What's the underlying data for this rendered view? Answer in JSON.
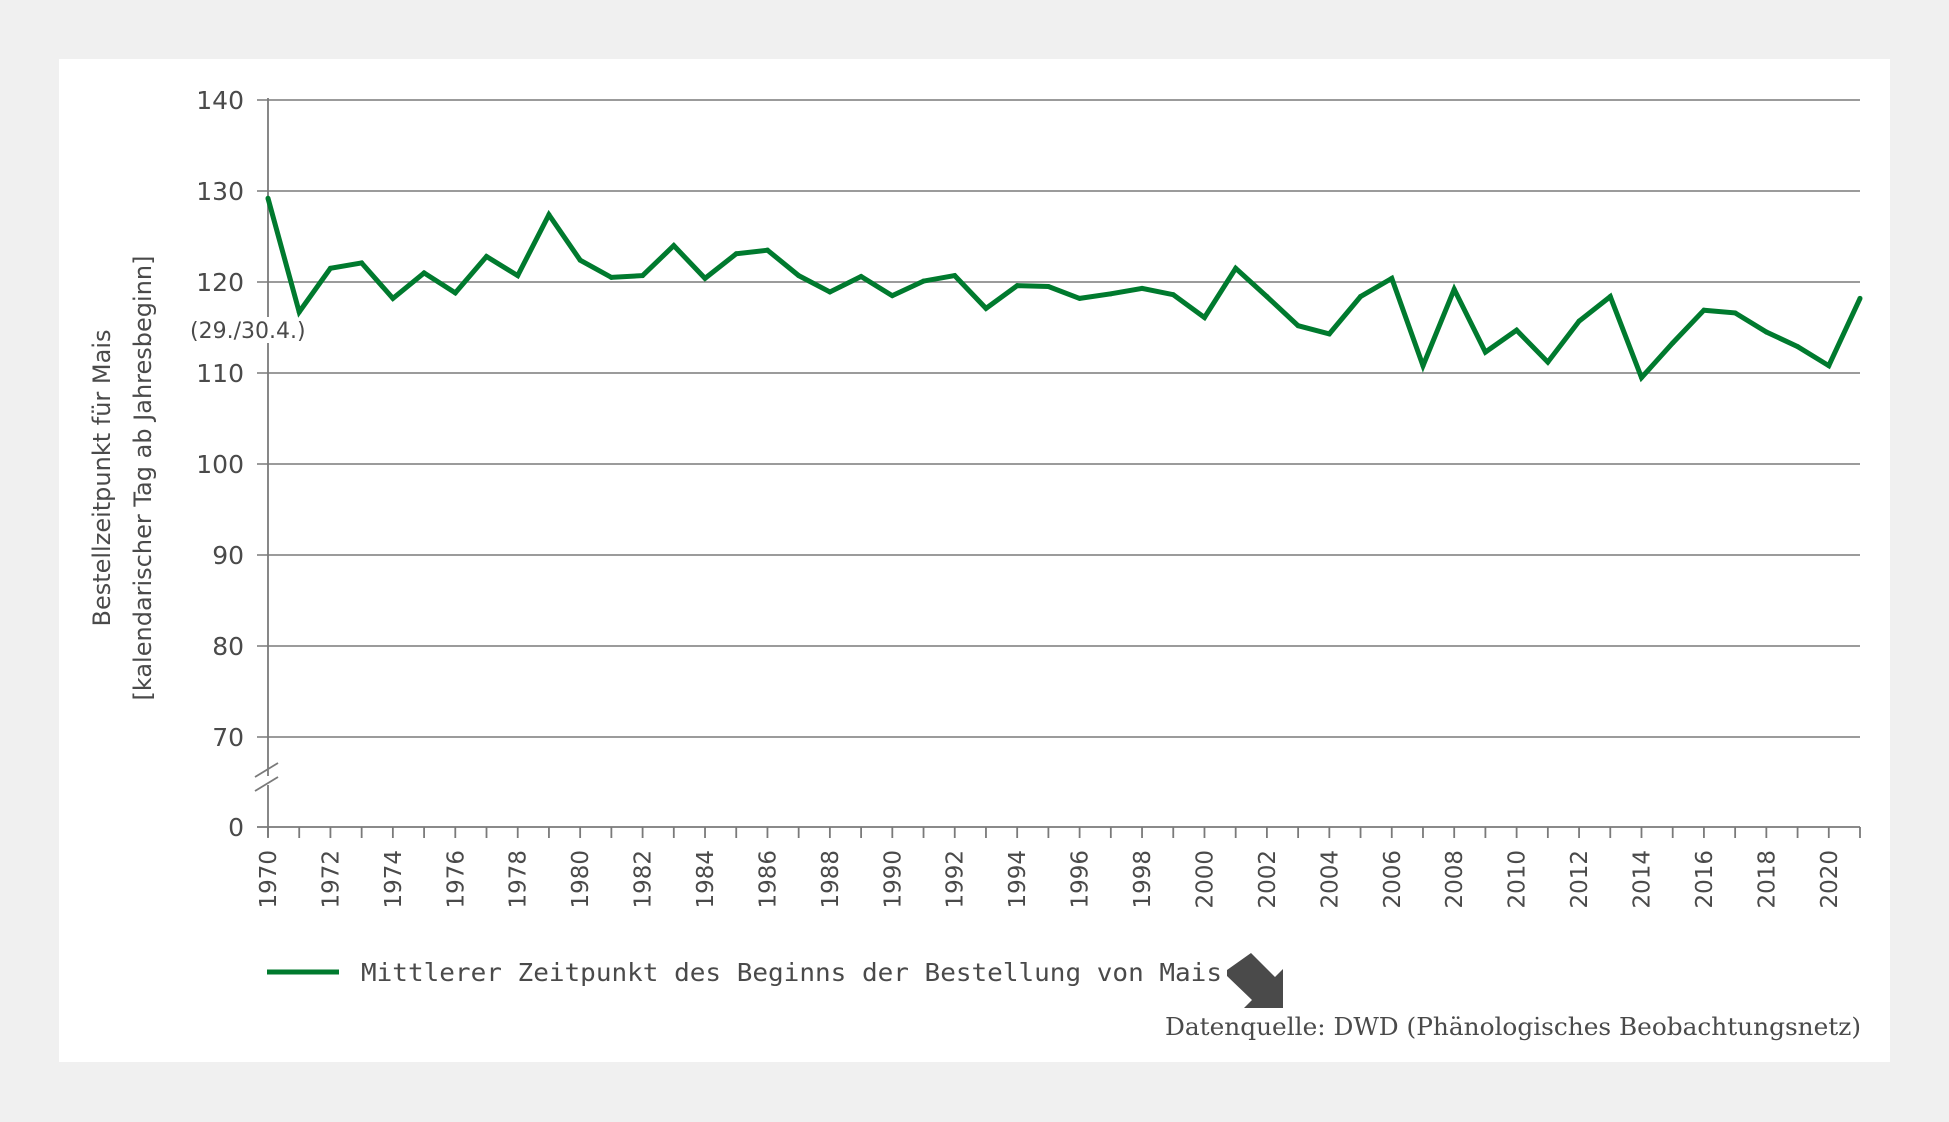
{
  "chart_data": {
    "type": "line",
    "title": "",
    "ylabel_lines": [
      "Bestellzeitpunkt für Mais",
      "[kalendarischer Tag  ab Jahresbeginn]"
    ],
    "xlabel": "",
    "y_ticks": [
      0,
      70,
      80,
      90,
      100,
      110,
      120,
      130,
      140
    ],
    "y_tick_labels": [
      "0",
      "70",
      "80",
      "90",
      "100",
      "110",
      "120",
      "130",
      "140"
    ],
    "ylim_upper_segment": [
      70,
      140
    ],
    "y_axis_break": "between 0 and 70",
    "xlim": [
      1970,
      2021
    ],
    "x_tick_labels": [
      "1970",
      "1972",
      "1974",
      "1976",
      "1978",
      "1980",
      "1982",
      "1984",
      "1986",
      "1988",
      "1990",
      "1992",
      "1994",
      "1996",
      "1998",
      "2000",
      "2002",
      "2004",
      "2006",
      "2008",
      "2010",
      "2012",
      "2014",
      "2016",
      "2018",
      "2020"
    ],
    "grid": true,
    "annotation": {
      "text": "(29./30.4.)",
      "y_value": 120
    },
    "x": [
      1970,
      1971,
      1972,
      1973,
      1974,
      1975,
      1976,
      1977,
      1978,
      1979,
      1980,
      1981,
      1982,
      1983,
      1984,
      1985,
      1986,
      1987,
      1988,
      1989,
      1990,
      1991,
      1992,
      1993,
      1994,
      1995,
      1996,
      1997,
      1998,
      1999,
      2000,
      2001,
      2002,
      2003,
      2004,
      2005,
      2006,
      2007,
      2008,
      2009,
      2010,
      2011,
      2012,
      2013,
      2014,
      2015,
      2016,
      2017,
      2018,
      2019,
      2020,
      2021
    ],
    "series": [
      {
        "name": "Mittlerer Zeitpunkt des Beginns der Bestellung von Mais",
        "color": "#007a2e",
        "values": [
          129.2,
          116.7,
          121.5,
          122.1,
          118.2,
          121.0,
          118.8,
          122.8,
          120.7,
          127.4,
          122.4,
          120.5,
          120.7,
          124.0,
          120.4,
          123.1,
          123.5,
          120.7,
          118.9,
          120.6,
          118.5,
          120.1,
          120.7,
          117.1,
          119.6,
          119.5,
          118.2,
          118.7,
          119.3,
          118.6,
          116.1,
          121.5,
          118.4,
          115.2,
          114.3,
          118.4,
          120.4,
          110.8,
          119.2,
          112.3,
          114.7,
          111.2,
          115.7,
          118.4,
          109.5,
          113.3,
          116.9,
          116.6,
          114.5,
          112.9,
          110.8,
          118.2
        ]
      }
    ],
    "legend": {
      "placement": "bottom-left",
      "trend_icon": "arrow-down-right-icon"
    },
    "source": "Datenquelle: DWD (Phänologisches Beobachtungsnetz)"
  },
  "colors": {
    "line": "#007a2e",
    "grid": "#7a7a7a",
    "text": "#4a4a4a",
    "icon": "#4a4a4a",
    "background": "#f0f0f0",
    "panel": "#ffffff"
  }
}
